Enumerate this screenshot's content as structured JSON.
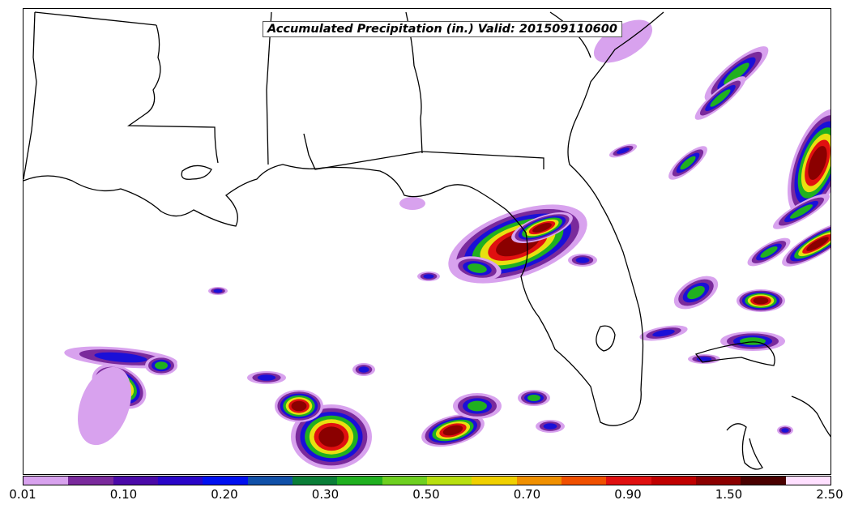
{
  "title": "Accumulated Precipitation (in.) Valid: 201509110600",
  "colorbar": {
    "labels": [
      "0.01",
      "0.10",
      "0.20",
      "0.30",
      "0.50",
      "0.70",
      "0.90",
      "1.50",
      "2.50"
    ],
    "colors": [
      "#d8a2ee",
      "#7a2a9c",
      "#4b0aa8",
      "#2a05c8",
      "#0010f0",
      "#1050a8",
      "#0a7e38",
      "#20b020",
      "#6ed020",
      "#b8e010",
      "#f0d000",
      "#f09000",
      "#f05000",
      "#e01010",
      "#c00000",
      "#8b0000",
      "#4a0000",
      "#ffe0ff"
    ]
  },
  "palette": {
    "coast": "#000000",
    "light": "#d8a2ee",
    "purple": "#7a2a9c",
    "blue": "#1a10d8",
    "green": "#20b020",
    "yellow": "#e8e010",
    "red": "#e01010",
    "dark": "#8b0000"
  }
}
